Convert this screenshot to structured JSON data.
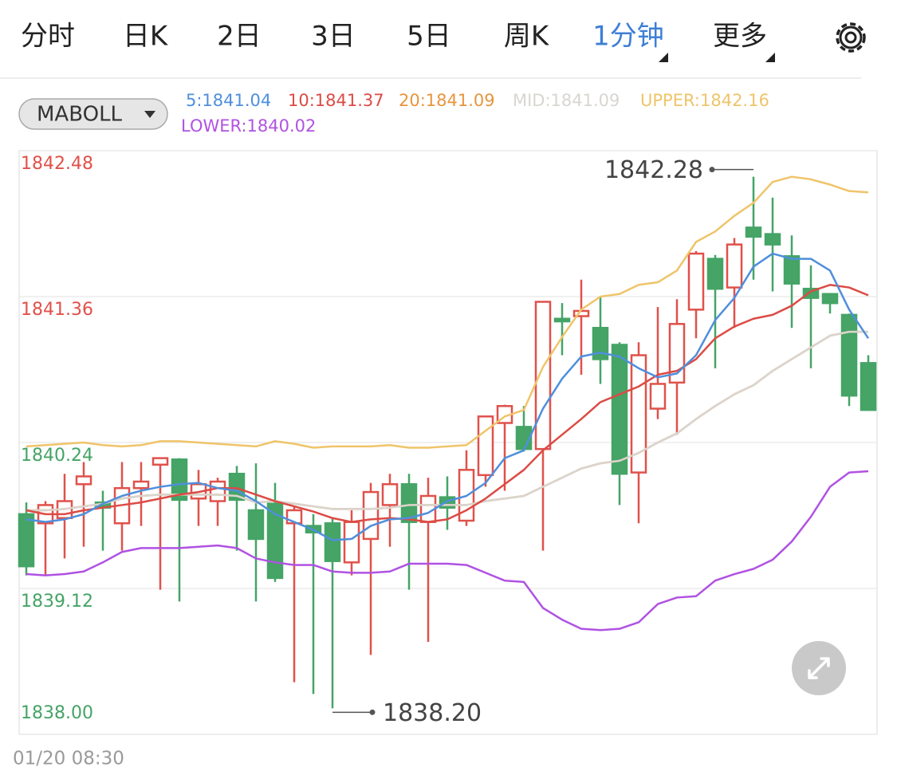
{
  "tabs": [
    {
      "label": "分时",
      "active": false,
      "dropdown": false
    },
    {
      "label": "日K",
      "active": false,
      "dropdown": false
    },
    {
      "label": "2日",
      "active": false,
      "dropdown": false
    },
    {
      "label": "3日",
      "active": false,
      "dropdown": false
    },
    {
      "label": "5日",
      "active": false,
      "dropdown": false
    },
    {
      "label": "周K",
      "active": false,
      "dropdown": false
    },
    {
      "label": "1分钟",
      "active": true,
      "dropdown": true
    },
    {
      "label": "更多",
      "active": false,
      "dropdown": true
    }
  ],
  "indicator": "MABOLL",
  "chart_data": {
    "type": "candlestick",
    "categories": [
      "01/20 08:30",
      null,
      null,
      null,
      null,
      null,
      null,
      null,
      null,
      null,
      null,
      null,
      null,
      null,
      null,
      null,
      null,
      null,
      null,
      null,
      null,
      null,
      null,
      null,
      null,
      null,
      null,
      null,
      null,
      null,
      null,
      null,
      null,
      null,
      null,
      null,
      null,
      null,
      null,
      null,
      null,
      null,
      null,
      null,
      null
    ],
    "open": [
      1839.69,
      1839.62,
      1839.66,
      1839.92,
      1839.78,
      1839.62,
      1839.89,
      1840.07,
      1840.11,
      1839.81,
      1839.79,
      1840.0,
      1839.72,
      1839.77,
      1839.62,
      1839.6,
      1839.62,
      1839.32,
      1839.5,
      1839.76,
      1839.92,
      1839.63,
      1839.82,
      1839.64,
      1839.99,
      1840.39,
      1840.36,
      1840.19,
      1841.19,
      1841.21,
      1841.12,
      1840.99,
      1840.01,
      1840.5,
      1840.7,
      1841.26,
      1841.65,
      1841.43,
      1841.89,
      1841.84,
      1841.67,
      1841.42,
      1841.38,
      1841.22,
      1840.85
    ],
    "high": [
      1839.78,
      1839.79,
      1840.0,
      1840.09,
      1839.87,
      1840.09,
      1840.09,
      1840.12,
      1840.12,
      1840.03,
      1839.97,
      1840.06,
      1840.08,
      1839.93,
      1839.75,
      1839.69,
      1839.66,
      1839.72,
      1839.93,
      1840.0,
      1840.0,
      1839.97,
      1839.98,
      1840.18,
      1840.44,
      1840.53,
      1840.52,
      1841.32,
      1841.31,
      1841.49,
      1841.36,
      1841.01,
      1841.01,
      1841.28,
      1841.34,
      1841.71,
      1841.68,
      1841.81,
      1842.28,
      1842.12,
      1841.83,
      1841.6,
      1841.38,
      1841.23,
      1840.91
    ],
    "low": [
      1839.22,
      1839.22,
      1839.35,
      1839.44,
      1839.41,
      1839.41,
      1839.6,
      1839.11,
      1839.02,
      1839.6,
      1839.6,
      1839.41,
      1839.02,
      1839.17,
      1838.4,
      1838.31,
      1838.2,
      1839.22,
      1838.61,
      1839.44,
      1839.11,
      1838.71,
      1839.57,
      1839.6,
      1839.9,
      1839.87,
      1840.17,
      1839.41,
      1840.91,
      1840.76,
      1840.69,
      1839.76,
      1839.62,
      1840.42,
      1840.3,
      1841.04,
      1840.81,
      1841.12,
      1841.49,
      1841.4,
      1841.12,
      1840.81,
      1841.23,
      1840.52,
      1840.49
    ],
    "close": [
      1839.29,
      1839.76,
      1839.79,
      1839.98,
      1839.74,
      1839.89,
      1839.94,
      1840.12,
      1839.8,
      1839.92,
      1839.94,
      1839.8,
      1839.5,
      1839.2,
      1839.72,
      1839.55,
      1839.33,
      1839.63,
      1839.86,
      1839.92,
      1839.63,
      1839.83,
      1839.74,
      1840.03,
      1840.44,
      1840.52,
      1840.19,
      1841.32,
      1841.17,
      1841.25,
      1840.88,
      1840.0,
      1840.91,
      1840.69,
      1841.15,
      1841.69,
      1841.42,
      1841.76,
      1841.82,
      1841.76,
      1841.46,
      1841.35,
      1841.31,
      1840.6,
      1840.49
    ],
    "up_color": "#e0514b",
    "down_color": "#45a466",
    "series": [
      {
        "name": "5:1841.04",
        "color": "#4f8fdc",
        "values": [
          1839.65,
          1839.63,
          1839.65,
          1839.69,
          1839.77,
          1839.83,
          1839.87,
          1839.9,
          1839.92,
          1839.93,
          1839.89,
          1839.87,
          1839.79,
          1839.69,
          1839.63,
          1839.57,
          1839.49,
          1839.5,
          1839.6,
          1839.65,
          1839.66,
          1839.7,
          1839.79,
          1839.83,
          1839.93,
          1840.12,
          1840.18,
          1840.5,
          1840.73,
          1840.9,
          1840.93,
          1840.9,
          1840.81,
          1840.74,
          1840.77,
          1840.91,
          1841.18,
          1841.35,
          1841.59,
          1841.69,
          1841.65,
          1841.65,
          1841.56,
          1841.26,
          1841.04
        ]
      },
      {
        "name": "10:1841.37",
        "color": "#dc4b45",
        "values": [
          1839.72,
          1839.69,
          1839.69,
          1839.72,
          1839.74,
          1839.76,
          1839.78,
          1839.81,
          1839.84,
          1839.86,
          1839.89,
          1839.89,
          1839.84,
          1839.79,
          1839.75,
          1839.71,
          1839.66,
          1839.63,
          1839.65,
          1839.66,
          1839.65,
          1839.63,
          1839.65,
          1839.72,
          1839.81,
          1839.92,
          1840.03,
          1840.18,
          1840.3,
          1840.42,
          1840.55,
          1840.61,
          1840.67,
          1840.76,
          1840.79,
          1840.88,
          1841.04,
          1841.13,
          1841.19,
          1841.22,
          1841.29,
          1841.4,
          1841.45,
          1841.43,
          1841.37
        ]
      },
      {
        "name": "20:1841.09",
        "color": "#e8953e",
        "values": [
          1839.72,
          1839.72,
          1839.73,
          1839.75,
          1839.77,
          1839.81,
          1839.83,
          1839.84,
          1839.84,
          1839.84,
          1839.84,
          1839.83,
          1839.78,
          1839.79,
          1839.77,
          1839.75,
          1839.73,
          1839.73,
          1839.73,
          1839.74,
          1839.76,
          1839.76,
          1839.76,
          1839.76,
          1839.79,
          1839.81,
          1839.83,
          1839.9,
          1839.97,
          1840.04,
          1840.08,
          1840.1,
          1840.16,
          1840.24,
          1840.31,
          1840.42,
          1840.52,
          1840.61,
          1840.68,
          1840.79,
          1840.88,
          1840.97,
          1841.06,
          1841.09,
          1841.09
        ]
      },
      {
        "name": "MID:1841.09",
        "color": "#d9d5d0",
        "values": [
          1839.72,
          1839.72,
          1839.73,
          1839.75,
          1839.77,
          1839.81,
          1839.83,
          1839.84,
          1839.84,
          1839.84,
          1839.84,
          1839.83,
          1839.78,
          1839.79,
          1839.77,
          1839.75,
          1839.73,
          1839.73,
          1839.73,
          1839.74,
          1839.76,
          1839.76,
          1839.76,
          1839.76,
          1839.79,
          1839.81,
          1839.83,
          1839.9,
          1839.97,
          1840.04,
          1840.08,
          1840.1,
          1840.16,
          1840.24,
          1840.31,
          1840.42,
          1840.52,
          1840.61,
          1840.68,
          1840.79,
          1840.88,
          1840.97,
          1841.06,
          1841.09,
          1841.09
        ]
      },
      {
        "name": "UPPER:1842.16",
        "color": "#efc46a",
        "values": [
          1840.21,
          1840.22,
          1840.23,
          1840.24,
          1840.22,
          1840.21,
          1840.22,
          1840.25,
          1840.25,
          1840.24,
          1840.23,
          1840.22,
          1840.21,
          1840.25,
          1840.23,
          1840.2,
          1840.21,
          1840.21,
          1840.21,
          1840.22,
          1840.2,
          1840.2,
          1840.21,
          1840.22,
          1840.33,
          1840.44,
          1840.49,
          1840.82,
          1841.05,
          1841.26,
          1841.36,
          1841.38,
          1841.45,
          1841.47,
          1841.56,
          1841.78,
          1841.86,
          1841.98,
          1842.08,
          1842.24,
          1842.28,
          1842.26,
          1842.22,
          1842.17,
          1842.16
        ]
      },
      {
        "name": "LOWER:1840.02",
        "color": "#b052e2",
        "values": [
          1839.23,
          1839.22,
          1839.23,
          1839.25,
          1839.32,
          1839.4,
          1839.43,
          1839.43,
          1839.43,
          1839.44,
          1839.45,
          1839.43,
          1839.35,
          1839.32,
          1839.3,
          1839.3,
          1839.25,
          1839.24,
          1839.24,
          1839.25,
          1839.31,
          1839.31,
          1839.31,
          1839.3,
          1839.24,
          1839.18,
          1839.17,
          1838.97,
          1838.88,
          1838.81,
          1838.8,
          1838.81,
          1838.86,
          1839.0,
          1839.05,
          1839.06,
          1839.18,
          1839.23,
          1839.27,
          1839.34,
          1839.48,
          1839.67,
          1839.9,
          1840.01,
          1840.02
        ]
      }
    ],
    "ylim": [
      1838.0,
      1842.48
    ],
    "yticks": [
      1842.48,
      1841.36,
      1840.24,
      1839.12,
      {
        "value": 1838.0,
        "label": "1838.00"
      }
    ],
    "ytick_colors": [
      "#e0514b",
      "#e0514b",
      "#45a466",
      "#45a466",
      "#45a466"
    ],
    "grid": true,
    "annotations": [
      {
        "value": 1842.28,
        "label": "1842.28"
      },
      {
        "value": 1838.2,
        "label": "1838.20"
      }
    ]
  }
}
